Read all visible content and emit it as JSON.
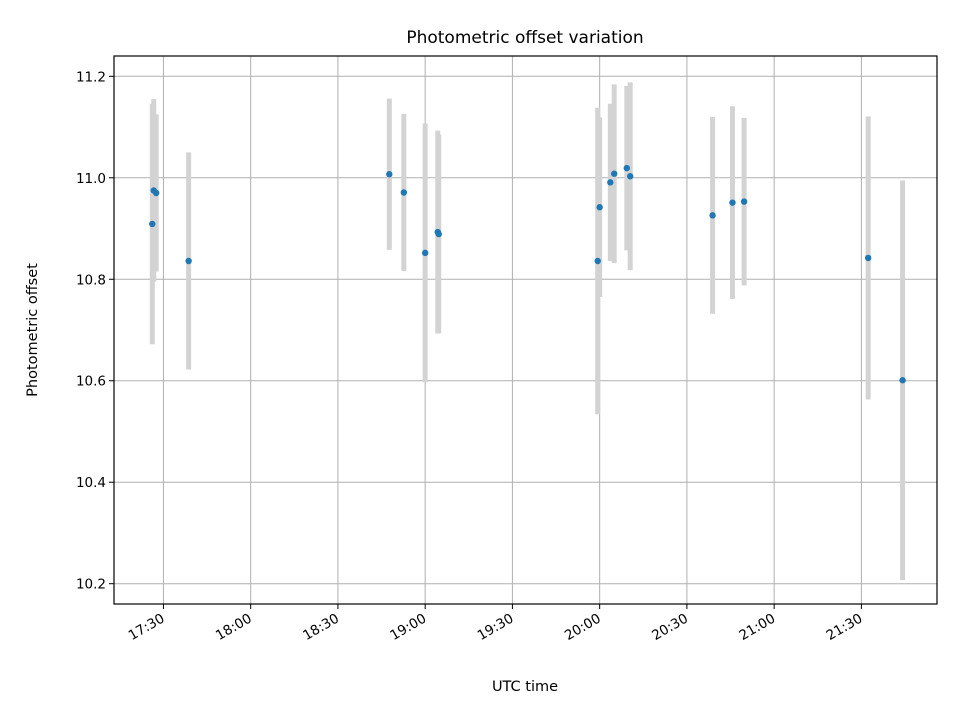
{
  "chart_data": {
    "type": "scatter",
    "title": "Photometric offset variation",
    "xlabel": "UTC time",
    "ylabel": "Photometric offset",
    "grid": true,
    "xlim": [
      "17:13",
      "21:56"
    ],
    "ylim": [
      10.16,
      11.24
    ],
    "x_ticks": [
      "17:30",
      "18:00",
      "18:30",
      "19:00",
      "19:30",
      "20:00",
      "20:30",
      "21:00",
      "21:30"
    ],
    "y_ticks": [
      "10.2",
      "10.4",
      "10.6",
      "10.8",
      "11.0",
      "11.2"
    ],
    "colors": {
      "point": "#1f77b4",
      "errorbar": "#d3d3d3",
      "grid": "#b0b0b0"
    },
    "points": [
      {
        "x": "17:26:10",
        "y": 10.909,
        "yerr": 0.237
      },
      {
        "x": "17:26:40",
        "y": 10.975,
        "yerr": 0.18
      },
      {
        "x": "17:27:30",
        "y": 10.97,
        "yerr": 0.155
      },
      {
        "x": "17:38:40",
        "y": 10.836,
        "yerr": 0.214
      },
      {
        "x": "18:47:40",
        "y": 11.007,
        "yerr": 0.149
      },
      {
        "x": "18:52:40",
        "y": 10.971,
        "yerr": 0.155
      },
      {
        "x": "19:00:00",
        "y": 10.852,
        "yerr": 0.255
      },
      {
        "x": "19:04:20",
        "y": 10.893,
        "yerr": 0.2
      },
      {
        "x": "19:04:40",
        "y": 10.889,
        "yerr": 0.196
      },
      {
        "x": "19:59:20",
        "y": 10.836,
        "yerr": 0.302
      },
      {
        "x": "20:00:00",
        "y": 10.942,
        "yerr": 0.177
      },
      {
        "x": "20:03:40",
        "y": 10.991,
        "yerr": 0.155
      },
      {
        "x": "20:05:00",
        "y": 11.008,
        "yerr": 0.176
      },
      {
        "x": "20:09:20",
        "y": 11.019,
        "yerr": 0.162
      },
      {
        "x": "20:10:30",
        "y": 11.003,
        "yerr": 0.185
      },
      {
        "x": "20:38:50",
        "y": 10.926,
        "yerr": 0.194
      },
      {
        "x": "20:45:40",
        "y": 10.951,
        "yerr": 0.19
      },
      {
        "x": "20:49:40",
        "y": 10.953,
        "yerr": 0.165
      },
      {
        "x": "21:32:20",
        "y": 10.842,
        "yerr": 0.279
      },
      {
        "x": "21:44:10",
        "y": 10.601,
        "yerr": 0.394
      }
    ]
  }
}
